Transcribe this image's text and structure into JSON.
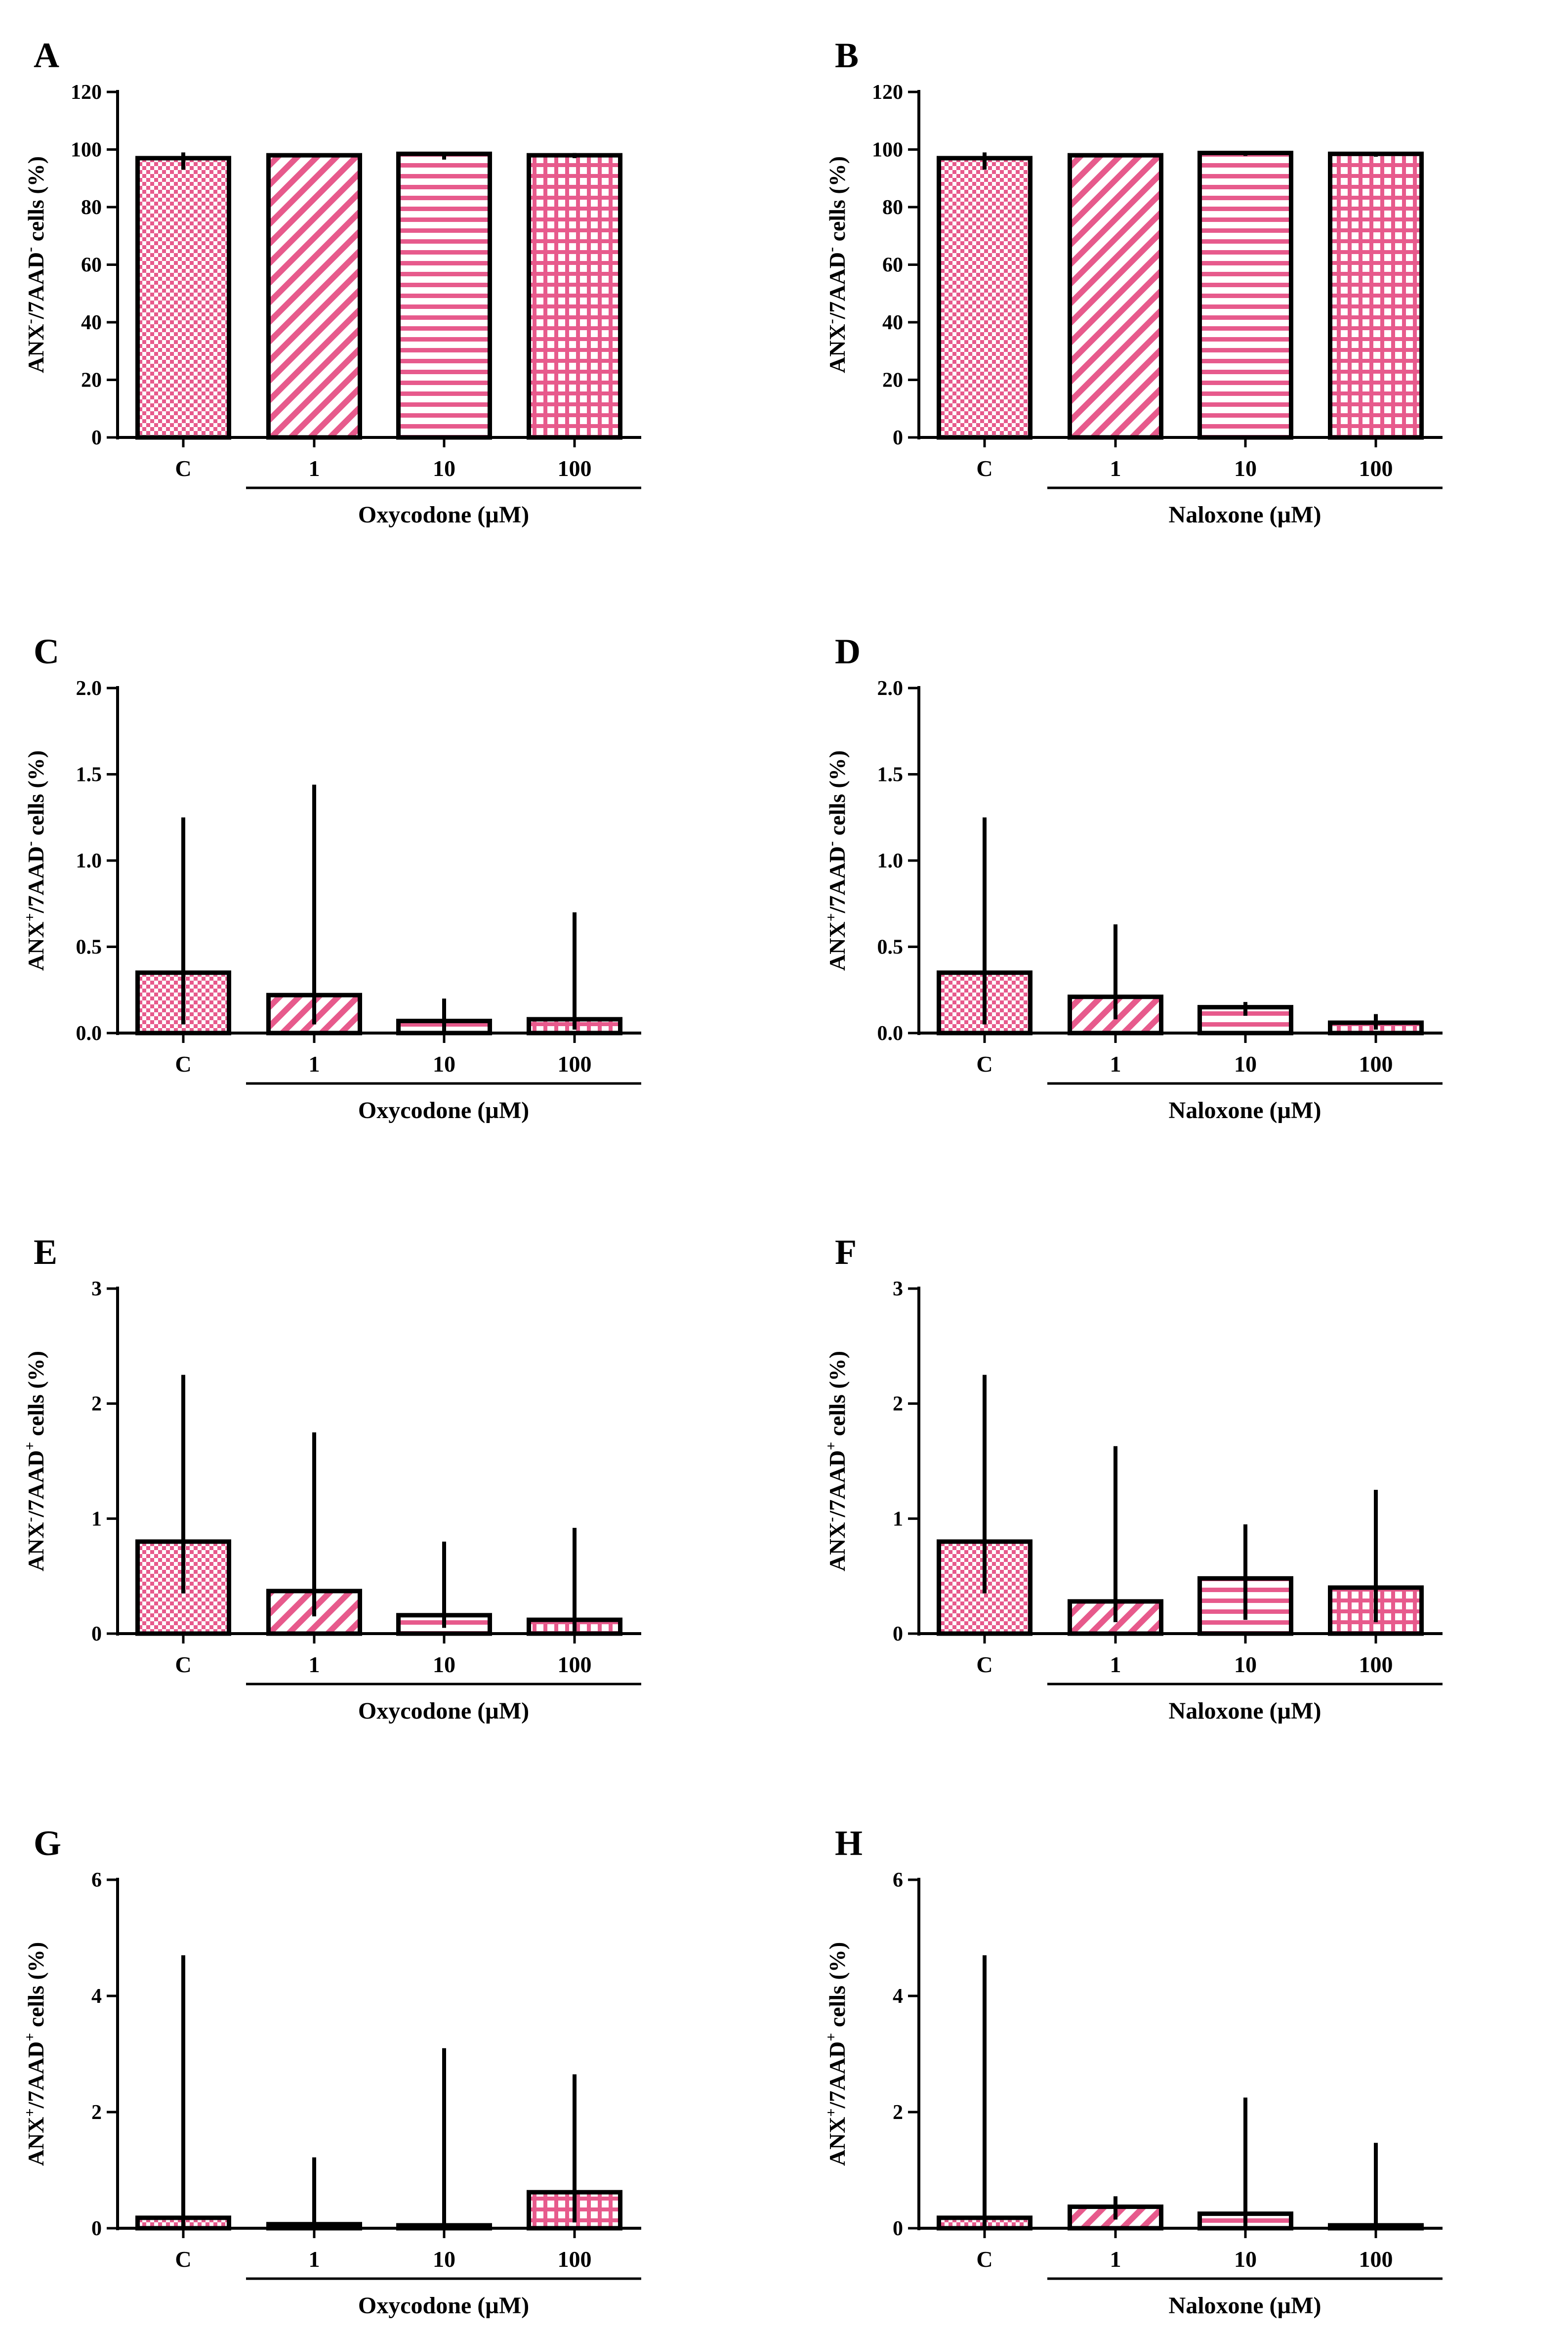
{
  "figure": {
    "colors": {
      "pattern": "#e75a8c",
      "stroke": "#000000",
      "background": "#ffffff"
    },
    "pattern_names": [
      "checkerboard",
      "diagonal-stripes",
      "horizontal-stripes",
      "grid"
    ]
  },
  "chart_data": [
    {
      "id": "A",
      "type": "bar",
      "panel_label": "A",
      "categories": [
        "C",
        "1",
        "10",
        "100"
      ],
      "values": [
        97,
        98,
        98.5,
        98
      ],
      "error_low": [
        93,
        97.5,
        96.5,
        97
      ],
      "error_high": [
        99,
        98.3,
        99,
        98.8
      ],
      "ylim": [
        0,
        120
      ],
      "yticks": [
        "0",
        "20",
        "40",
        "60",
        "80",
        "100",
        "120"
      ],
      "ylabel": {
        "main": "ANX",
        "sup1": "-",
        "mid": "/7AAD",
        "sup2": "-",
        "rest": " cells (%)"
      },
      "xlabel": "Oxycodone (µM)"
    },
    {
      "id": "B",
      "type": "bar",
      "panel_label": "B",
      "categories": [
        "C",
        "1",
        "10",
        "100"
      ],
      "values": [
        97,
        98,
        98.8,
        98.5
      ],
      "error_low": [
        93,
        97.5,
        97.8,
        97.5
      ],
      "error_high": [
        99,
        98.5,
        99.5,
        99.2
      ],
      "ylim": [
        0,
        120
      ],
      "yticks": [
        "0",
        "20",
        "40",
        "60",
        "80",
        "100",
        "120"
      ],
      "ylabel": {
        "main": "ANX",
        "sup1": "-",
        "mid": "/7AAD",
        "sup2": "-",
        "rest": " cells (%)"
      },
      "xlabel": "Naloxone (µM)"
    },
    {
      "id": "C",
      "type": "bar",
      "panel_label": "C",
      "categories": [
        "C",
        "1",
        "10",
        "100"
      ],
      "values": [
        0.35,
        0.22,
        0.07,
        0.08
      ],
      "error_low": [
        0.05,
        0.05,
        0.0,
        0.02
      ],
      "error_high": [
        1.25,
        1.44,
        0.2,
        0.7
      ],
      "ylim": [
        0,
        2.0
      ],
      "yticks": [
        "0.0",
        "0.5",
        "1.0",
        "1.5",
        "2.0"
      ],
      "ylabel": {
        "main": "ANX",
        "sup1": "+",
        "mid": "/7AAD",
        "sup2": "-",
        "rest": " cells (%)"
      },
      "xlabel": "Oxycodone (µM)"
    },
    {
      "id": "D",
      "type": "bar",
      "panel_label": "D",
      "categories": [
        "C",
        "1",
        "10",
        "100"
      ],
      "values": [
        0.35,
        0.21,
        0.15,
        0.06
      ],
      "error_low": [
        0.05,
        0.08,
        0.1,
        0.02
      ],
      "error_high": [
        1.25,
        0.63,
        0.18,
        0.11
      ],
      "ylim": [
        0,
        2.0
      ],
      "yticks": [
        "0.0",
        "0.5",
        "1.0",
        "1.5",
        "2.0"
      ],
      "ylabel": {
        "main": "ANX",
        "sup1": "+",
        "mid": "/7AAD",
        "sup2": "-",
        "rest": " cells (%)"
      },
      "xlabel": "Naloxone (µM)"
    },
    {
      "id": "E",
      "type": "bar",
      "panel_label": "E",
      "categories": [
        "C",
        "1",
        "10",
        "100"
      ],
      "values": [
        0.8,
        0.37,
        0.16,
        0.12
      ],
      "error_low": [
        0.35,
        0.15,
        0.05,
        0.02
      ],
      "error_high": [
        2.25,
        1.75,
        0.8,
        0.92
      ],
      "ylim": [
        0,
        3
      ],
      "yticks": [
        "0",
        "1",
        "2",
        "3"
      ],
      "ylabel": {
        "main": "ANX",
        "sup1": "-",
        "mid": "/7AAD",
        "sup2": "+",
        "rest": " cells (%)"
      },
      "xlabel": "Oxycodone (µM)"
    },
    {
      "id": "F",
      "type": "bar",
      "panel_label": "F",
      "categories": [
        "C",
        "1",
        "10",
        "100"
      ],
      "values": [
        0.8,
        0.28,
        0.48,
        0.4
      ],
      "error_low": [
        0.35,
        0.1,
        0.12,
        0.1
      ],
      "error_high": [
        2.25,
        1.63,
        0.95,
        1.25
      ],
      "ylim": [
        0,
        3
      ],
      "yticks": [
        "0",
        "1",
        "2",
        "3"
      ],
      "ylabel": {
        "main": "ANX",
        "sup1": "-",
        "mid": "/7AAD",
        "sup2": "+",
        "rest": " cells (%)"
      },
      "xlabel": "Naloxone (µM)"
    },
    {
      "id": "G",
      "type": "bar",
      "panel_label": "G",
      "categories": [
        "C",
        "1",
        "10",
        "100"
      ],
      "values": [
        0.18,
        0.07,
        0.05,
        0.62
      ],
      "error_low": [
        0.0,
        0.0,
        0.0,
        0.1
      ],
      "error_high": [
        4.7,
        1.22,
        3.1,
        2.65
      ],
      "ylim": [
        0,
        6
      ],
      "yticks": [
        "0",
        "2",
        "4",
        "6"
      ],
      "ylabel": {
        "main": "ANX",
        "sup1": "+",
        "mid": "/7AAD",
        "sup2": "+",
        "rest": " cells (%)"
      },
      "xlabel": "Oxycodone (µM)"
    },
    {
      "id": "H",
      "type": "bar",
      "panel_label": "H",
      "categories": [
        "C",
        "1",
        "10",
        "100"
      ],
      "values": [
        0.18,
        0.37,
        0.25,
        0.05
      ],
      "error_low": [
        0.0,
        0.15,
        0.0,
        0.0
      ],
      "error_high": [
        4.7,
        0.55,
        2.25,
        1.47
      ],
      "ylim": [
        0,
        6
      ],
      "yticks": [
        "0",
        "2",
        "4",
        "6"
      ],
      "ylabel": {
        "main": "ANX",
        "sup1": "+",
        "mid": "/7AAD",
        "sup2": "+",
        "rest": " cells (%)"
      },
      "xlabel": "Naloxone (µM)"
    }
  ]
}
